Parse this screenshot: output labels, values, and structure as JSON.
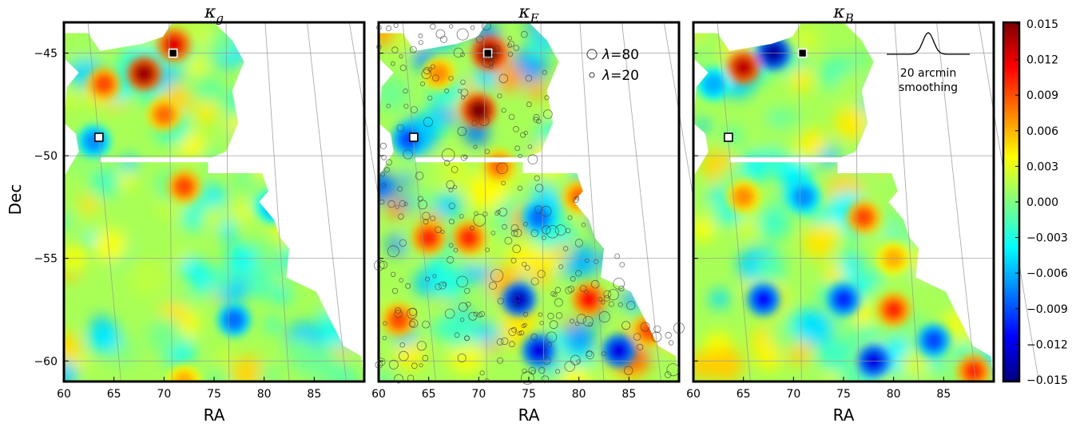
{
  "chart_data": {
    "type": "heatmap",
    "panels": [
      {
        "id": "kg",
        "title_sym": "κ",
        "title_sub": "g"
      },
      {
        "id": "kE",
        "title_sym": "κ",
        "title_sub": "E"
      },
      {
        "id": "kB",
        "title_sym": "κ",
        "title_sub": "B"
      }
    ],
    "xlabel": "RA",
    "ylabel": "Dec",
    "x_ticks": [
      60,
      65,
      70,
      75,
      80,
      85
    ],
    "y_ticks": [
      -45,
      -50,
      -55,
      -60
    ],
    "xlim": [
      60,
      90
    ],
    "ylim": [
      -61,
      -43.5
    ],
    "colorbar": {
      "ticks": [
        "0.015",
        "0.012",
        "0.009",
        "0.006",
        "0.003",
        "0.000",
        "−0.003",
        "−0.006",
        "−0.009",
        "−0.012",
        "−0.015"
      ],
      "range": [
        -0.015,
        0.015
      ],
      "colors": [
        "#00007f",
        "#0000ff",
        "#007fff",
        "#00ffff",
        "#7fff7f",
        "#ffff00",
        "#ff7f00",
        "#ff0000",
        "#7f0000"
      ]
    },
    "legend": {
      "entries": [
        {
          "sym": "λ",
          "eq": "=",
          "val": "80",
          "size": "large"
        },
        {
          "sym": "λ",
          "eq": "=",
          "val": "20",
          "size": "small"
        }
      ],
      "placement": "top-right of middle panel"
    },
    "smoothing_annotation": {
      "line1": "20 arcmin",
      "line2": "smoothing",
      "placement": "top-right of right panel"
    },
    "cluster_markers": [
      {
        "ra": 70.9,
        "dec": -45.0,
        "fill": "#000000"
      },
      {
        "ra": 63.5,
        "dec": -49.1,
        "fill": "#ffffff"
      }
    ],
    "grid": true,
    "hotspots": {
      "kg": [
        {
          "ra": 68,
          "dec": -46,
          "v": 0.014
        },
        {
          "ra": 71,
          "dec": -44.6,
          "v": 0.012
        },
        {
          "ra": 64,
          "dec": -46.5,
          "v": 0.009
        },
        {
          "ra": 70,
          "dec": -48,
          "v": 0.008
        },
        {
          "ra": 72,
          "dec": -51.5,
          "v": 0.009
        },
        {
          "ra": 63,
          "dec": -49.3,
          "v": -0.007
        },
        {
          "ra": 77,
          "dec": -58,
          "v": -0.008
        },
        {
          "ra": 81,
          "dec": -52.5,
          "v": -0.006
        },
        {
          "ra": 61,
          "dec": -55,
          "v": 0.003
        },
        {
          "ra": 72,
          "dec": -61,
          "v": 0.006
        }
      ],
      "kE": [
        {
          "ra": 71,
          "dec": -45,
          "v": 0.015
        },
        {
          "ra": 70,
          "dec": -47.8,
          "v": 0.015
        },
        {
          "ra": 65,
          "dec": -54,
          "v": 0.01
        },
        {
          "ra": 69,
          "dec": -54,
          "v": 0.01
        },
        {
          "ra": 74,
          "dec": -57,
          "v": -0.013
        },
        {
          "ra": 81,
          "dec": -57,
          "v": 0.011
        },
        {
          "ra": 63,
          "dec": -49.2,
          "v": -0.009
        },
        {
          "ra": 76,
          "dec": -53,
          "v": -0.008
        },
        {
          "ra": 76,
          "dec": -59.5,
          "v": -0.012
        },
        {
          "ra": 84,
          "dec": -59.5,
          "v": -0.012
        },
        {
          "ra": 72,
          "dec": -50.5,
          "v": 0.008
        },
        {
          "ra": 80,
          "dec": -52,
          "v": 0.008
        },
        {
          "ra": 62,
          "dec": -58,
          "v": 0.009
        },
        {
          "ra": 87,
          "dec": -58.5,
          "v": 0.009
        },
        {
          "ra": 66,
          "dec": -46,
          "v": 0.007
        }
      ],
      "kB": [
        {
          "ra": 65,
          "dec": -45.7,
          "v": 0.013
        },
        {
          "ra": 68,
          "dec": -45,
          "v": -0.014
        },
        {
          "ra": 62,
          "dec": -46.5,
          "v": -0.006
        },
        {
          "ra": 77,
          "dec": -53,
          "v": 0.009
        },
        {
          "ra": 80,
          "dec": -55,
          "v": 0.006
        },
        {
          "ra": 67,
          "dec": -57,
          "v": -0.011
        },
        {
          "ra": 75,
          "dec": -57,
          "v": -0.01
        },
        {
          "ra": 78,
          "dec": -60,
          "v": -0.012
        },
        {
          "ra": 84,
          "dec": -59,
          "v": -0.009
        },
        {
          "ra": 71,
          "dec": -52,
          "v": -0.007
        },
        {
          "ra": 65,
          "dec": -52,
          "v": 0.007
        },
        {
          "ra": 80,
          "dec": -57.5,
          "v": 0.01
        },
        {
          "ra": 88,
          "dec": -60.5,
          "v": 0.01
        }
      ]
    }
  }
}
